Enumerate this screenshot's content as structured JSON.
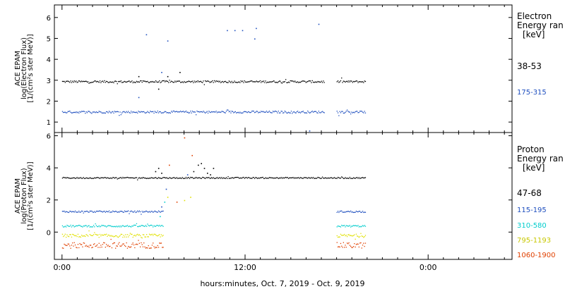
{
  "chart_data": [
    {
      "type": "scatter",
      "panel": "electron",
      "ylabel_lines": [
        "ACE EPAM",
        "log(Electron Flux)",
        "[1/(cm²s ster MeV)]"
      ],
      "ylim": [
        0.5,
        6.6
      ],
      "yticks": [
        1,
        2,
        3,
        4,
        5,
        6
      ],
      "legend_title_lines": [
        "Electron",
        "Energy ran"
      ],
      "legend_unit": "[keV]",
      "series": [
        {
          "name": "38-53",
          "color": "#000000",
          "base": 2.95,
          "noise": 0.05,
          "segments": [
            [
              0,
              17.2
            ],
            [
              18.0,
              19.9
            ]
          ]
        },
        {
          "name": "175-315",
          "color": "#1f4fbf",
          "base": 1.5,
          "noise": 0.05,
          "segments": [
            [
              0,
              17.2
            ],
            [
              18.0,
              19.9
            ]
          ]
        }
      ],
      "extra_points": [
        {
          "series": 1,
          "pts": [
            [
              5.5,
              5.2
            ],
            [
              6.5,
              3.4
            ],
            [
              6.9,
              4.9
            ],
            [
              10.8,
              5.4
            ],
            [
              11.3,
              5.4
            ],
            [
              11.8,
              5.4
            ],
            [
              12.6,
              5.0
            ],
            [
              12.7,
              5.5
            ],
            [
              16.2,
              0.6
            ],
            [
              16.8,
              5.7
            ],
            [
              5.0,
              2.2
            ]
          ]
        },
        {
          "series": 0,
          "pts": [
            [
              6.3,
              2.6
            ],
            [
              6.9,
              3.2
            ],
            [
              7.7,
              3.4
            ],
            [
              5.0,
              3.2
            ]
          ]
        }
      ]
    },
    {
      "type": "scatter",
      "panel": "proton",
      "ylabel_lines": [
        "ACE EPAM",
        "log(Proton Flux)",
        "[1/(cm²s ster MeV)]"
      ],
      "ylim": [
        -1.7,
        6.2
      ],
      "yticks": [
        0,
        2,
        4,
        6
      ],
      "legend_title_lines": [
        "Proton",
        "Energy ran"
      ],
      "legend_unit": "[keV]",
      "series": [
        {
          "name": "47-68",
          "color": "#000000",
          "base": 3.4,
          "noise": 0.04,
          "segments": [
            [
              0,
              19.9
            ]
          ]
        },
        {
          "name": "115-195",
          "color": "#1f4fbf",
          "base": 1.3,
          "noise": 0.05,
          "segments": [
            [
              0,
              6.6
            ],
            [
              18.0,
              19.9
            ]
          ]
        },
        {
          "name": "310-580",
          "color": "#00cccc",
          "base": 0.4,
          "noise": 0.06,
          "segments": [
            [
              0,
              6.6
            ],
            [
              18.0,
              19.9
            ]
          ]
        },
        {
          "name": "795-1193",
          "color": "#e0e000",
          "base": -0.2,
          "noise": 0.1,
          "segments": [
            [
              0,
              6.6
            ],
            [
              18.0,
              19.9
            ]
          ]
        },
        {
          "name": "1060-1900",
          "color": "#e04000",
          "base": -0.8,
          "noise": 0.18,
          "segments": [
            [
              0,
              6.6
            ],
            [
              18.0,
              19.9
            ]
          ]
        }
      ],
      "extra_points": [
        {
          "series": 0,
          "pts": [
            [
              6.1,
              3.8
            ],
            [
              6.3,
              4.0
            ],
            [
              6.5,
              3.7
            ],
            [
              8.9,
              4.2
            ],
            [
              9.1,
              4.3
            ],
            [
              9.3,
              4.0
            ],
            [
              9.5,
              3.7
            ],
            [
              9.7,
              3.6
            ],
            [
              9.9,
              4.0
            ],
            [
              8.6,
              3.8
            ]
          ]
        },
        {
          "series": 4,
          "pts": [
            [
              7.0,
              4.2
            ],
            [
              8.0,
              5.9
            ],
            [
              8.5,
              4.8
            ],
            [
              7.5,
              1.9
            ]
          ]
        },
        {
          "series": 3,
          "pts": [
            [
              6.9,
              2.2
            ],
            [
              8.4,
              2.2
            ],
            [
              8.0,
              2.0
            ]
          ]
        },
        {
          "series": 1,
          "pts": [
            [
              6.5,
              1.6
            ],
            [
              6.8,
              2.7
            ],
            [
              8.2,
              3.6
            ]
          ]
        },
        {
          "series": 2,
          "pts": [
            [
              6.4,
              1.0
            ],
            [
              6.7,
              1.9
            ]
          ]
        }
      ]
    }
  ],
  "time_axis": {
    "ticks": [
      {
        "hours": 0,
        "label": "0:00"
      },
      {
        "hours": 12,
        "label": "12:00"
      },
      {
        "hours": 24,
        "label": "0:00"
      }
    ],
    "minor_step": 1,
    "range_hours": [
      -0.5,
      29.5
    ],
    "xlabel": "hours:minutes, Oct.  7, 2019 - Oct.  9, 2019"
  }
}
